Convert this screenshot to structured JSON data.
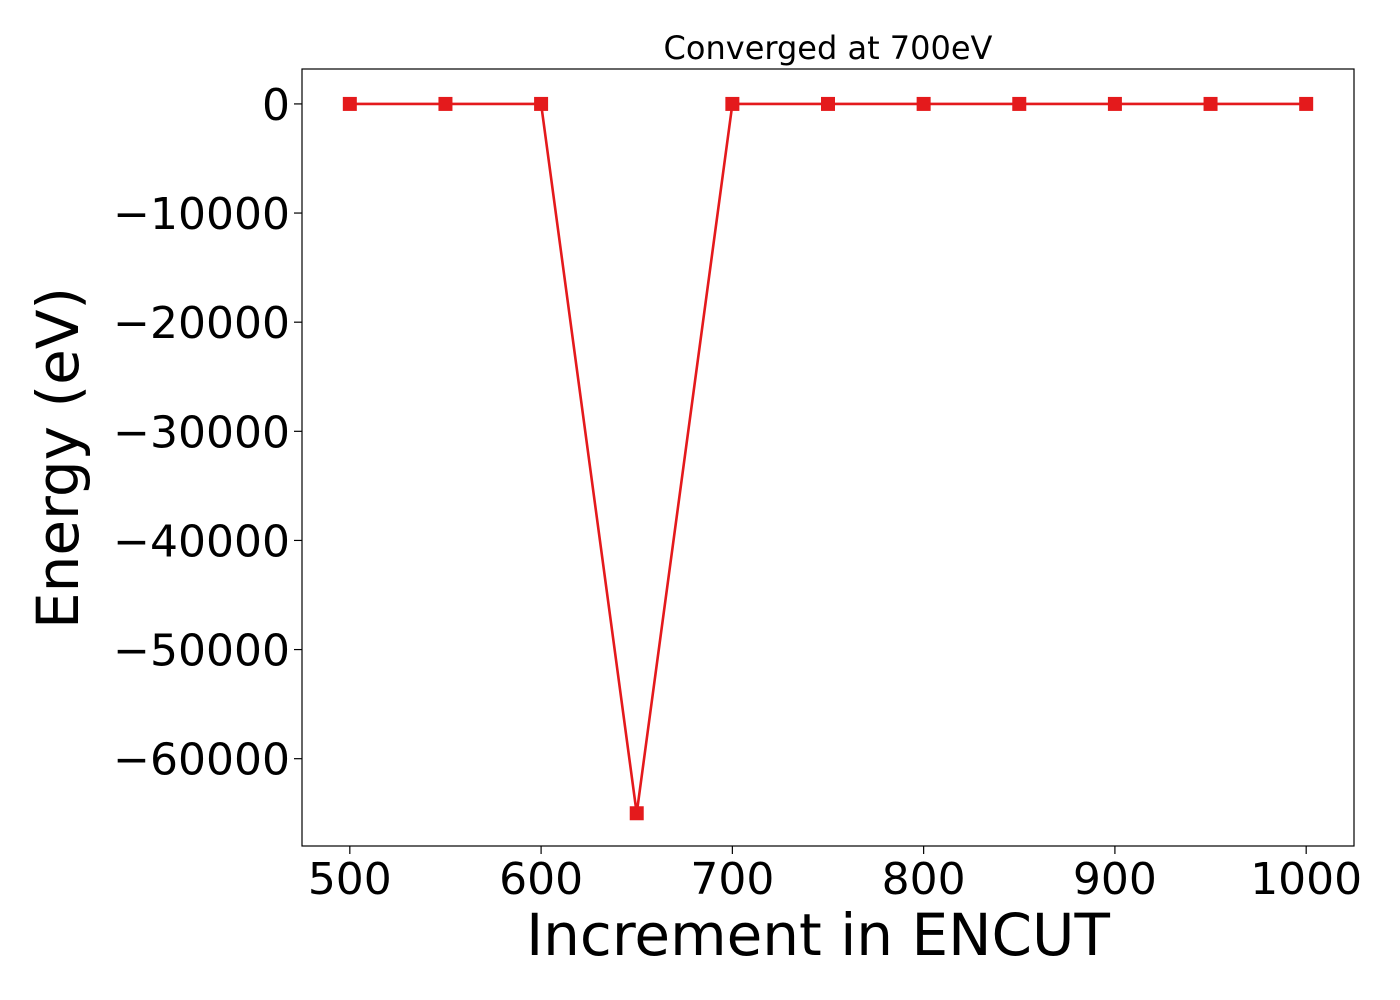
{
  "chart_data": {
    "type": "line",
    "title": "Converged at 700eV",
    "xlabel": "Increment in ENCUT",
    "ylabel": "Energy (eV)",
    "xlim": [
      475,
      1025
    ],
    "ylim": [
      -68000,
      3200
    ],
    "xticks": [
      500,
      600,
      700,
      800,
      900,
      1000
    ],
    "yticks": [
      0,
      -10000,
      -20000,
      -30000,
      -40000,
      -50000,
      -60000
    ],
    "ytick_labels": [
      "0",
      "−10000",
      "−20000",
      "−30000",
      "−40000",
      "−50000",
      "−60000"
    ],
    "grid": false,
    "series": [
      {
        "x": [
          500,
          550,
          600,
          650,
          700,
          750,
          800,
          850,
          900,
          950,
          1000
        ],
        "y": [
          0,
          0,
          0,
          -65000,
          0,
          0,
          0,
          0,
          0,
          0,
          0
        ],
        "color": "#e41a1c",
        "marker": "square"
      }
    ]
  }
}
